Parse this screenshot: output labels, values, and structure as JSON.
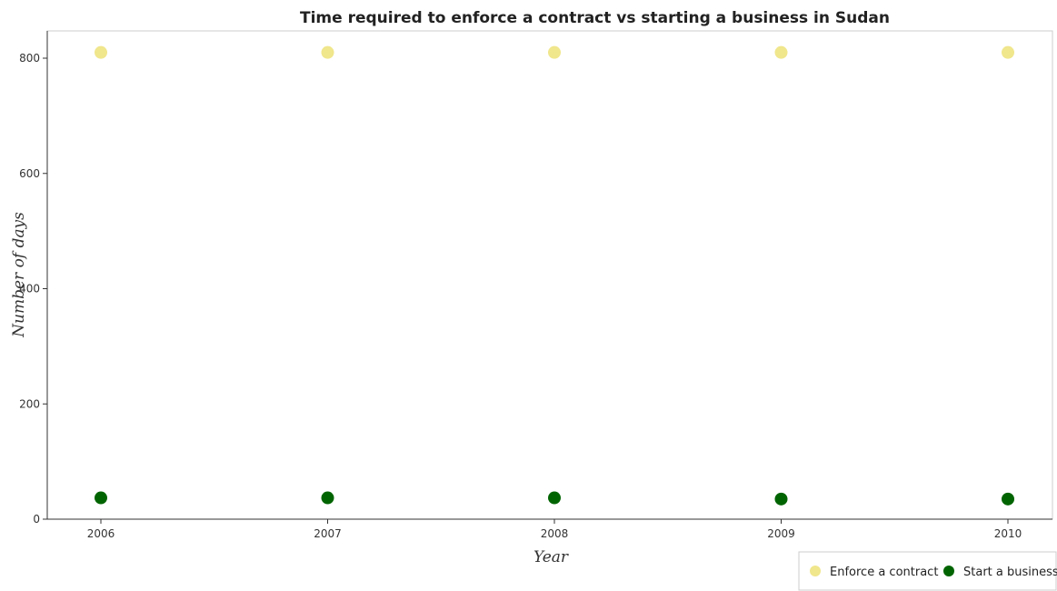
{
  "chart_data": {
    "type": "scatter",
    "title": "Time required to enforce a contract vs starting a business in Sudan",
    "xlabel": "Year",
    "ylabel": "Number of days",
    "categories": [
      "2006",
      "2007",
      "2008",
      "2009",
      "2010"
    ],
    "ylim": [
      0,
      880
    ],
    "yticks": [
      0,
      200,
      400,
      600,
      800
    ],
    "grid": false,
    "legend_position": "bottom-right",
    "series": [
      {
        "name": "Enforce a contract",
        "color": "#f0e68c",
        "values": [
          810,
          810,
          810,
          810,
          810
        ]
      },
      {
        "name": "Start a business",
        "color": "#006400",
        "values": [
          37,
          37,
          37,
          35,
          35
        ]
      }
    ]
  }
}
